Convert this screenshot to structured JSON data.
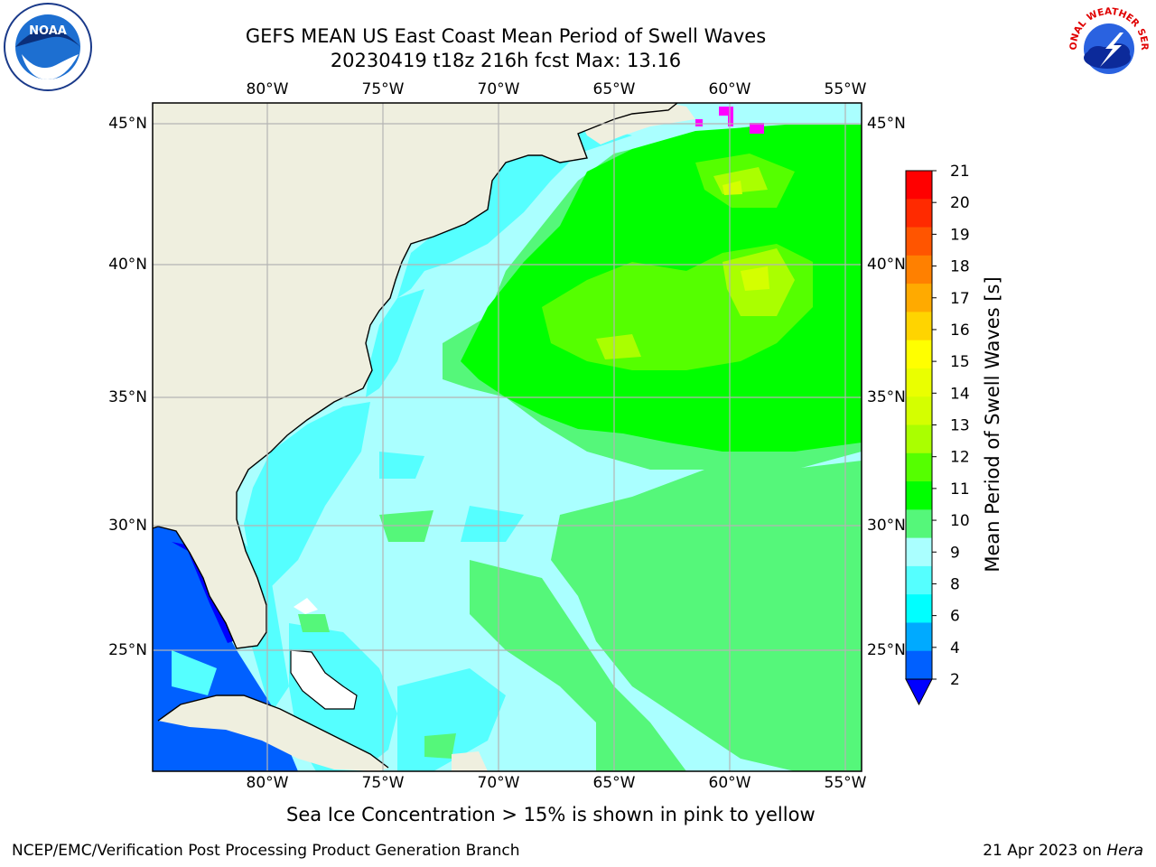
{
  "title": {
    "line1": "GEFS MEAN US East Coast Mean Period of Swell Waves",
    "line2": "20230419 t18z 216h fcst   Max: 13.16"
  },
  "axes": {
    "lon_labels": [
      "80°W",
      "75°W",
      "70°W",
      "65°W",
      "60°W",
      "55°W"
    ],
    "lat_labels": [
      "45°N",
      "40°N",
      "35°N",
      "30°N",
      "25°N"
    ]
  },
  "colorbar": {
    "label": "Mean Period of Swell Waves [s]",
    "ticks": [
      "21",
      "20",
      "19",
      "18",
      "17",
      "16",
      "15",
      "14",
      "13",
      "12",
      "11",
      "10",
      "9",
      "8",
      "6",
      "4",
      "2"
    ],
    "colors": [
      "#ff0000",
      "#ff2a00",
      "#ff5500",
      "#ff8000",
      "#ffaa00",
      "#ffd400",
      "#ffff00",
      "#eaff00",
      "#d4ff00",
      "#aaff00",
      "#55ff00",
      "#00ff00",
      "#55f77a",
      "#aaffff",
      "#55ffff",
      "#00ffff",
      "#00aaff",
      "#0060ff"
    ],
    "extend_color": "#0000ff"
  },
  "map_colors": {
    "land": "#efefdf",
    "ocean_base": "#aaffff",
    "cyan": "#55ffff",
    "light_green": "#55f77a",
    "green": "#00ff00",
    "lime": "#55ff00",
    "yellow_green": "#aaff00",
    "yellow": "#d4ff00",
    "gulf_blue": "#0060ff",
    "deep_blue": "#0000ff",
    "magenta": "#ff00ff",
    "grid": "#b4b4b4"
  },
  "caption": "Sea Ice Concentration > 15% is shown in pink to yellow",
  "footer": {
    "left": "NCEP/EMC/Verification Post Processing Product Generation Branch",
    "right_date": "21 Apr 2023 on ",
    "right_host": "Hera"
  },
  "logos": {
    "noaa": "NOAA",
    "nws": "NATIONAL WEATHER SERVICE"
  }
}
